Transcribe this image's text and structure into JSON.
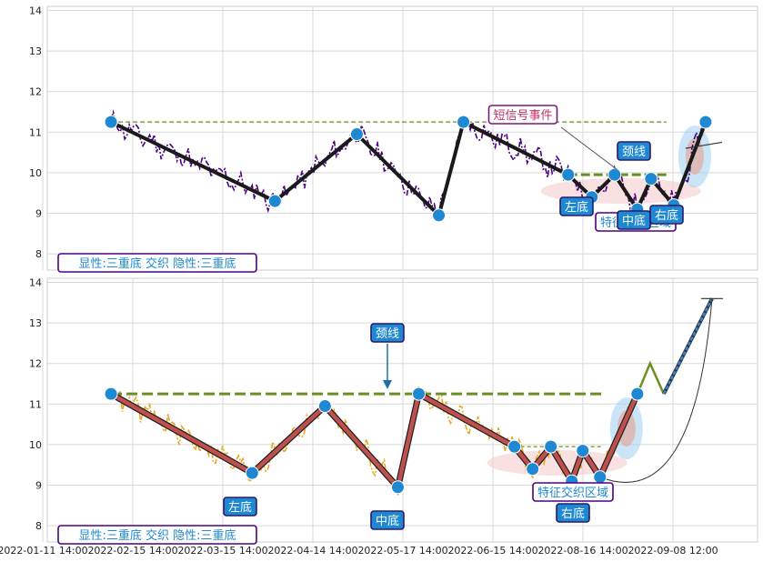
{
  "chart_data": [
    {
      "panel": "top",
      "type": "line",
      "ylim": [
        7.6,
        14.1
      ],
      "yticks": [
        8,
        9,
        10,
        11,
        12,
        13,
        14
      ],
      "grid": true,
      "colors": {
        "price": "#4b0082",
        "pattern": "#1a1a1a",
        "neck": "#6b8e23",
        "point": "#1e88d2"
      },
      "pattern_points": [
        {
          "x": 2.0,
          "y": 11.25
        },
        {
          "x": 20.0,
          "y": 9.3
        },
        {
          "x": 29.0,
          "y": 10.95
        },
        {
          "x": 38.0,
          "y": 8.95
        },
        {
          "x": 40.7,
          "y": 11.25
        },
        {
          "x": 52.2,
          "y": 9.95
        },
        {
          "x": 54.8,
          "y": 9.4
        },
        {
          "x": 57.3,
          "y": 9.95
        },
        {
          "x": 59.8,
          "y": 9.1
        },
        {
          "x": 61.3,
          "y": 9.85
        },
        {
          "x": 63.8,
          "y": 9.2
        },
        {
          "x": 67.3,
          "y": 11.25
        }
      ],
      "neckline": [
        {
          "x": 2.0,
          "y": 11.25
        },
        {
          "x": 63.0,
          "y": 11.25
        }
      ],
      "neckline2": [
        {
          "x": 52.2,
          "y": 9.95
        },
        {
          "x": 63.0,
          "y": 9.95
        }
      ],
      "labels": {
        "status": "显性:三重底 交织 隐性:三重底",
        "signal": "短信号事件",
        "neck": "颈线",
        "left": "左底",
        "mid": "中底",
        "right": "右底",
        "feature": "特征交织区域"
      }
    },
    {
      "panel": "bottom",
      "type": "line",
      "ylim": [
        7.6,
        14.1
      ],
      "yticks": [
        8,
        9,
        10,
        11,
        12,
        13,
        14
      ],
      "grid": true,
      "colors": {
        "price": "#e8a820",
        "pattern": "#c0504d",
        "neck": "#6b8e23",
        "point": "#1e88d2",
        "forecast": "#2e86de"
      },
      "pattern_points": [
        {
          "x": 2.0,
          "y": 11.25
        },
        {
          "x": 17.5,
          "y": 9.3
        },
        {
          "x": 25.5,
          "y": 10.95
        },
        {
          "x": 33.5,
          "y": 8.95
        },
        {
          "x": 35.8,
          "y": 11.25
        },
        {
          "x": 46.3,
          "y": 9.95
        },
        {
          "x": 48.3,
          "y": 9.4
        },
        {
          "x": 50.3,
          "y": 9.95
        },
        {
          "x": 52.6,
          "y": 9.1
        },
        {
          "x": 53.8,
          "y": 9.85
        },
        {
          "x": 55.7,
          "y": 9.2
        },
        {
          "x": 59.8,
          "y": 11.25
        }
      ],
      "neckline": [
        {
          "x": 2.0,
          "y": 11.25
        },
        {
          "x": 56.0,
          "y": 11.25
        }
      ],
      "neckline2": [
        {
          "x": 46.3,
          "y": 9.95
        },
        {
          "x": 56.0,
          "y": 9.95
        }
      ],
      "forecast": [
        {
          "x": 59.8,
          "y": 11.25
        },
        {
          "x": 61.2,
          "y": 12.0
        },
        {
          "x": 62.7,
          "y": 11.25
        },
        {
          "x": 68.0,
          "y": 13.6
        }
      ],
      "labels": {
        "status": "显性:三重底 交织 隐性:三重底",
        "neck": "颈线",
        "left": "左底",
        "mid": "中底",
        "right": "右底",
        "feature": "特征交织区域"
      }
    }
  ],
  "x_axis": {
    "tick_labels": [
      "2022-01-11 14:00",
      "2022-02-15 14:00",
      "2022-03-15 14:00",
      "2022-04-14 14:00",
      "2022-05-17 14:00",
      "2022-06-15 14:00",
      "2022-08-16 14:00",
      "2022-09-08 12:00"
    ]
  }
}
